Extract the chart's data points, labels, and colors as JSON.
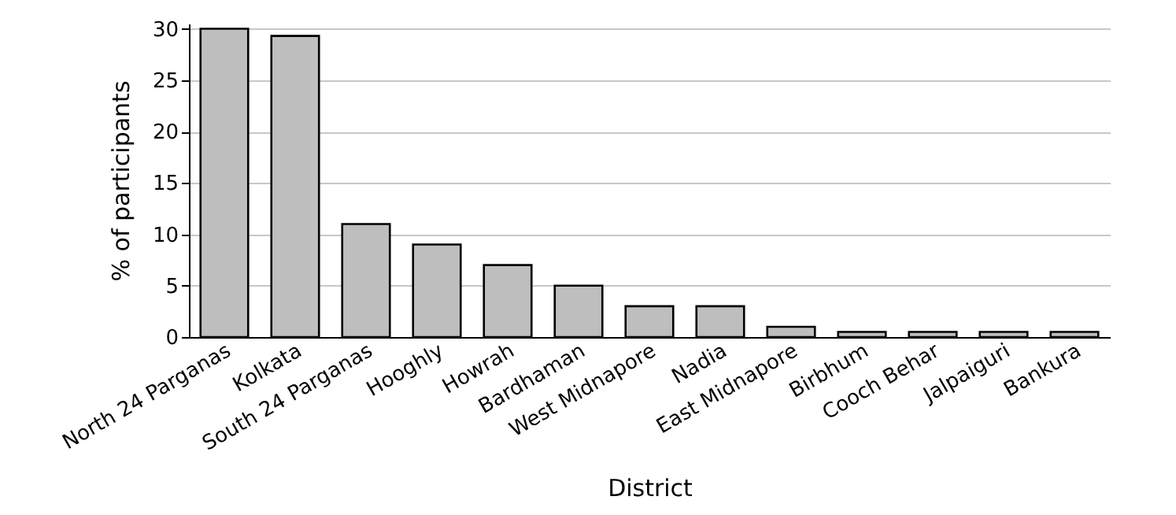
{
  "chart_data": {
    "type": "bar",
    "xlabel": "District",
    "ylabel": "% of participants",
    "categories": [
      "North 24 Parganas",
      "Kolkata",
      "South 24 Parganas",
      "Hooghly",
      "Howrah",
      "Bardhaman",
      "West Midnapore",
      "Nadia",
      "East Midnapore",
      "Birbhum",
      "Cooch Behar",
      "Jalpaiguri",
      "Bankura"
    ],
    "values": [
      30,
      29.3,
      11,
      9,
      7,
      5,
      3,
      3,
      1,
      0.5,
      0.5,
      0.5,
      0.5
    ],
    "color": "#bebebe",
    "ylim": [
      0,
      30.5
    ],
    "yticks": [
      0,
      5,
      10,
      15,
      20,
      25,
      30
    ],
    "grid": "y"
  }
}
